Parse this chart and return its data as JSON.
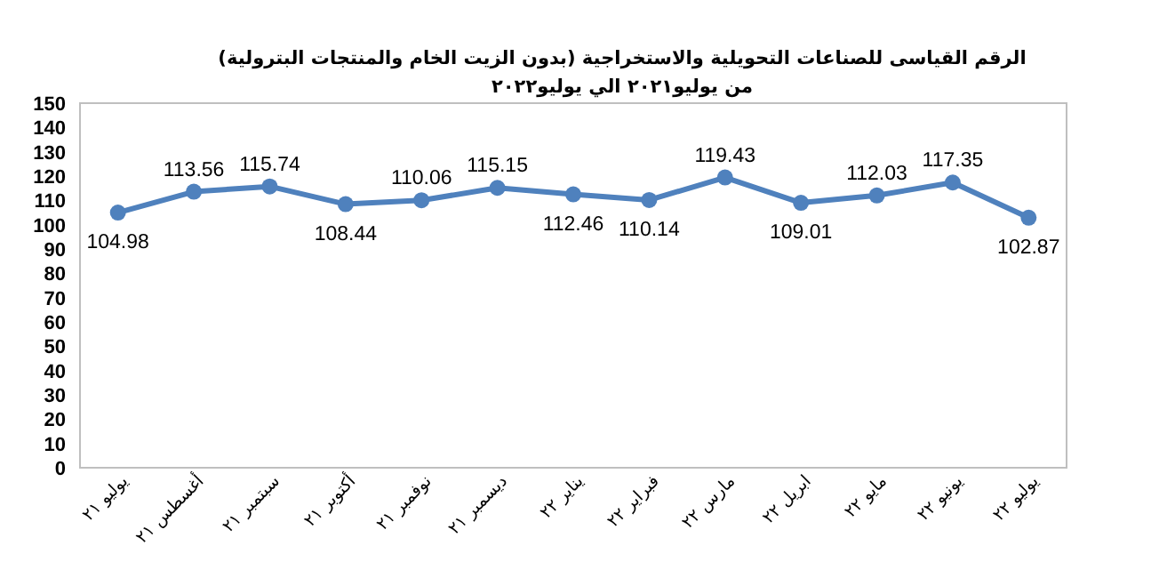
{
  "chart_data": {
    "type": "line",
    "title": "الرقم القياسى للصناعات التحويلية والاستخراجية (بدون الزيت الخام والمنتجات البترولية)",
    "subtitle": "من يوليو٢٠٢١  الي يوليو٢٠٢٢",
    "categories": [
      "يوليو ٢١",
      "أغسطس ٢١",
      "سبتمبر ٢١",
      "أكتوبر ٢١",
      "نوفمبر ٢١",
      "ديسمبر ٢١",
      "يناير ٢٢",
      "فبراير ٢٢",
      "مارس ٢٢",
      "ابريل ٢٢",
      "مايو ٢٢",
      "يونيو ٢٢",
      "يوليو ٢٢"
    ],
    "values": [
      104.98,
      113.56,
      115.74,
      108.44,
      110.06,
      115.15,
      112.46,
      110.14,
      119.43,
      109.01,
      112.03,
      117.35,
      102.87
    ],
    "color": "#4f81bd",
    "marker": "circle",
    "data_labels": true,
    "grid": false,
    "ylim": [
      0,
      150
    ],
    "yticks": [
      0,
      10,
      20,
      30,
      40,
      50,
      60,
      70,
      80,
      90,
      100,
      110,
      120,
      130,
      140,
      150
    ]
  }
}
